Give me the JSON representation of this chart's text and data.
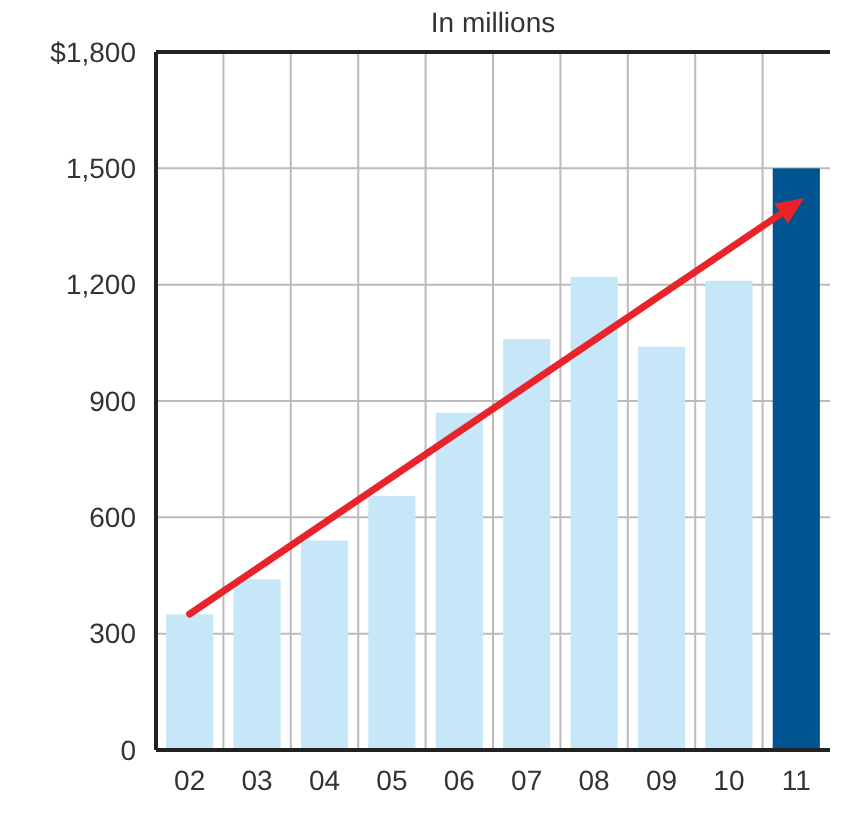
{
  "chart_data": {
    "type": "bar",
    "title": "In millions",
    "categories": [
      "02",
      "03",
      "04",
      "05",
      "06",
      "07",
      "08",
      "09",
      "10",
      "11"
    ],
    "values": [
      350,
      440,
      540,
      655,
      870,
      1060,
      1220,
      1040,
      1210,
      1500
    ],
    "colors": [
      "#c6e7f7",
      "#c6e7f7",
      "#c6e7f7",
      "#c6e7f7",
      "#c6e7f7",
      "#c6e7f7",
      "#c6e7f7",
      "#c6e7f7",
      "#c6e7f7",
      "#005490"
    ],
    "ylim": [
      0,
      1800
    ],
    "yticks": [
      0,
      300,
      600,
      900,
      {
        "value": 1200,
        "label": "1,200"
      },
      {
        "value": 1500,
        "label": "1,500"
      },
      {
        "value": 1800,
        "label": "$1,800"
      }
    ],
    "grid": true
  }
}
